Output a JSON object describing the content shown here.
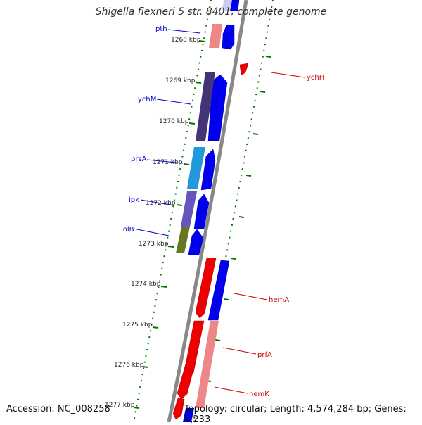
{
  "title": "Shigella flexneri 5 str. 8401, complete genome",
  "footer": {
    "accession": "Accession: NC_008258",
    "topology": "Topology: circular; Length: 4,574,284 bp; Genes: 4,233"
  },
  "colors": {
    "forward_cds": "#0000ee",
    "reverse_cds": "#ee0000",
    "backbone": "#888888",
    "tick": "#007700",
    "label_blue": "#0000cc",
    "label_red": "#cc0000"
  },
  "kbp_labels": [
    "1268 kbp",
    "1269 kbp",
    "1270 kbp",
    "1271 kbp",
    "1272 kbp",
    "1273 kbp",
    "1274 kbp",
    "1275 kbp",
    "1276 kbp",
    "1277 kbp"
  ],
  "genes_left": [
    "pth",
    "ychM",
    "prsA",
    "ipk",
    "lolB"
  ],
  "genes_right": [
    "ychH",
    "hemA",
    "prfA",
    "hemK"
  ]
}
